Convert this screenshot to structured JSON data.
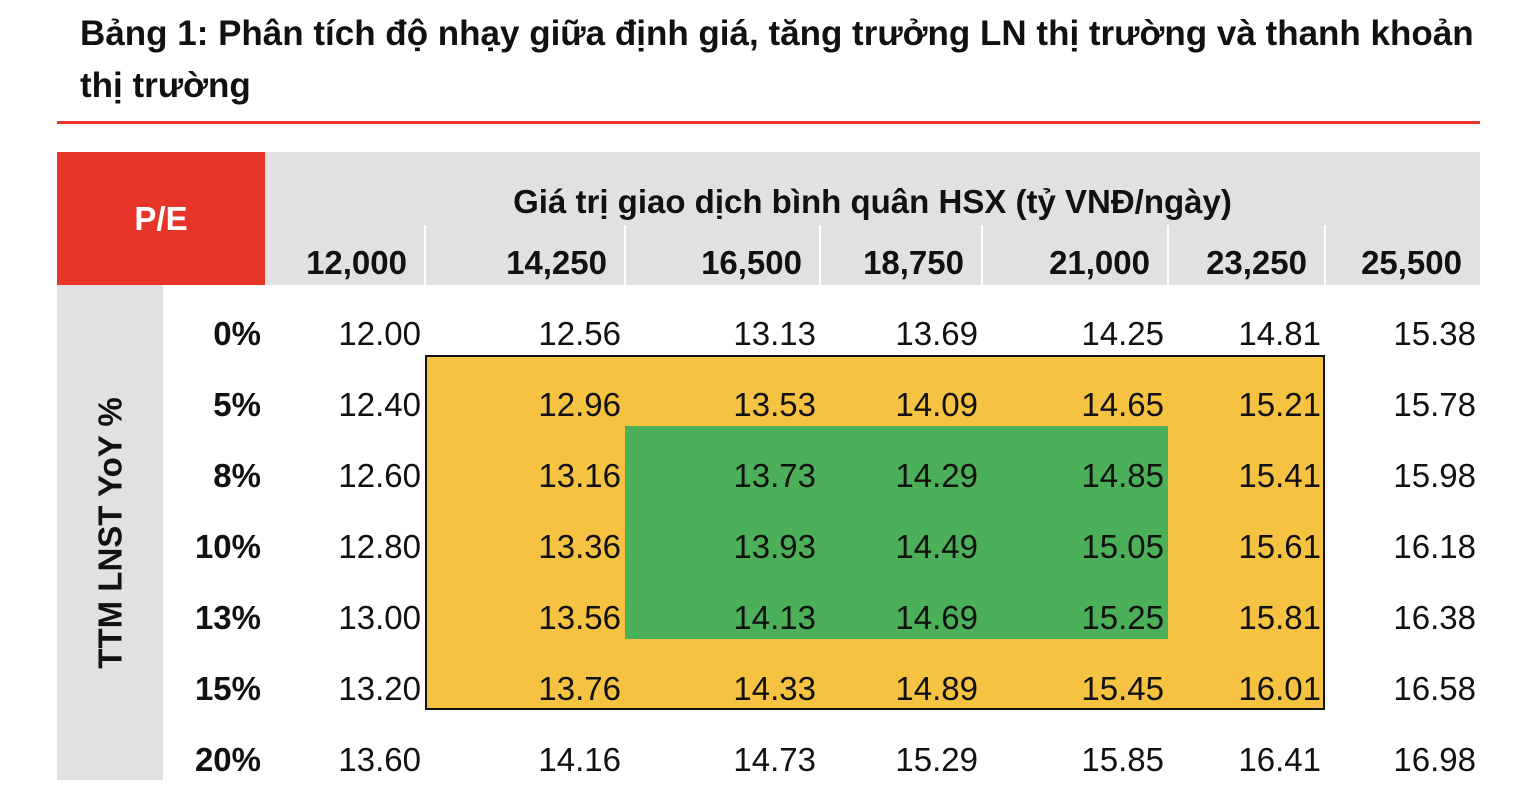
{
  "header": {
    "title": "Bảng 1: Phân tích độ nhạy giữa định giá, tăng trưởng LN thị trường và thanh khoản thị trường"
  },
  "table": {
    "corner": "P/E",
    "column_group": "Giá trị giao dịch bình quân HSX (tỷ VNĐ/ngày)",
    "columns": [
      "12,000",
      "14,250",
      "16,500",
      "18,750",
      "21,000",
      "23,250",
      "25,500"
    ],
    "row_group": "TTM LNST YoY %",
    "row_labels": [
      "0%",
      "5%",
      "8%",
      "10%",
      "13%",
      "15%",
      "20%"
    ],
    "rows": [
      [
        "12.00",
        "12.56",
        "13.13",
        "13.69",
        "14.25",
        "14.81",
        "15.38"
      ],
      [
        "12.40",
        "12.96",
        "13.53",
        "14.09",
        "14.65",
        "15.21",
        "15.78"
      ],
      [
        "12.60",
        "13.16",
        "13.73",
        "14.29",
        "14.85",
        "15.41",
        "15.98"
      ],
      [
        "12.80",
        "13.36",
        "13.93",
        "14.49",
        "15.05",
        "15.61",
        "16.18"
      ],
      [
        "13.00",
        "13.56",
        "14.13",
        "14.69",
        "15.25",
        "15.81",
        "16.38"
      ],
      [
        "13.20",
        "13.76",
        "14.33",
        "14.89",
        "15.45",
        "16.01",
        "16.58"
      ],
      [
        "13.60",
        "14.16",
        "14.73",
        "15.29",
        "15.85",
        "16.41",
        "16.98"
      ]
    ]
  }
}
